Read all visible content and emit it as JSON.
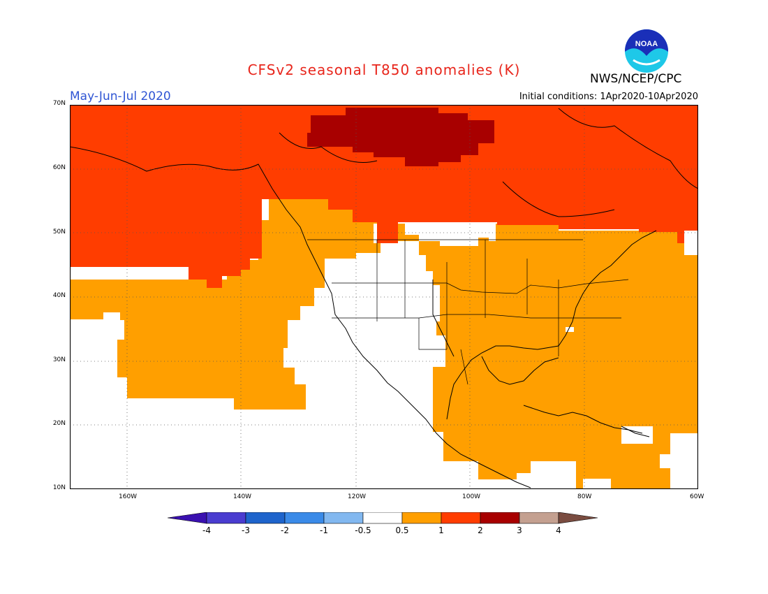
{
  "title": "CFSv2 seasonal T850 anomalies (K)",
  "period": "May-Jun-Jul 2020",
  "initial_conditions": "Initial conditions: 1Apr2020-10Apr2020",
  "organization": "NWS/NCEP/CPC",
  "logo_text": "NOAA",
  "lat_labels": [
    "70N",
    "60N",
    "50N",
    "40N",
    "30N",
    "20N",
    "10N"
  ],
  "lon_labels": [
    "160W",
    "140W",
    "120W",
    "100W",
    "80W",
    "60W"
  ],
  "legend": {
    "labels": [
      "-4",
      "-3",
      "-2",
      "-1",
      "-0.5",
      "0.5",
      "1",
      "2",
      "3",
      "4"
    ],
    "colors": [
      "#3a10b0",
      "#4a3cd0",
      "#1e64cc",
      "#3a8ae8",
      "#82b8f0",
      "#ffffff",
      "#ff9f00",
      "#ff3d00",
      "#a80000",
      "#c4a090",
      "#7a4c40"
    ]
  }
}
